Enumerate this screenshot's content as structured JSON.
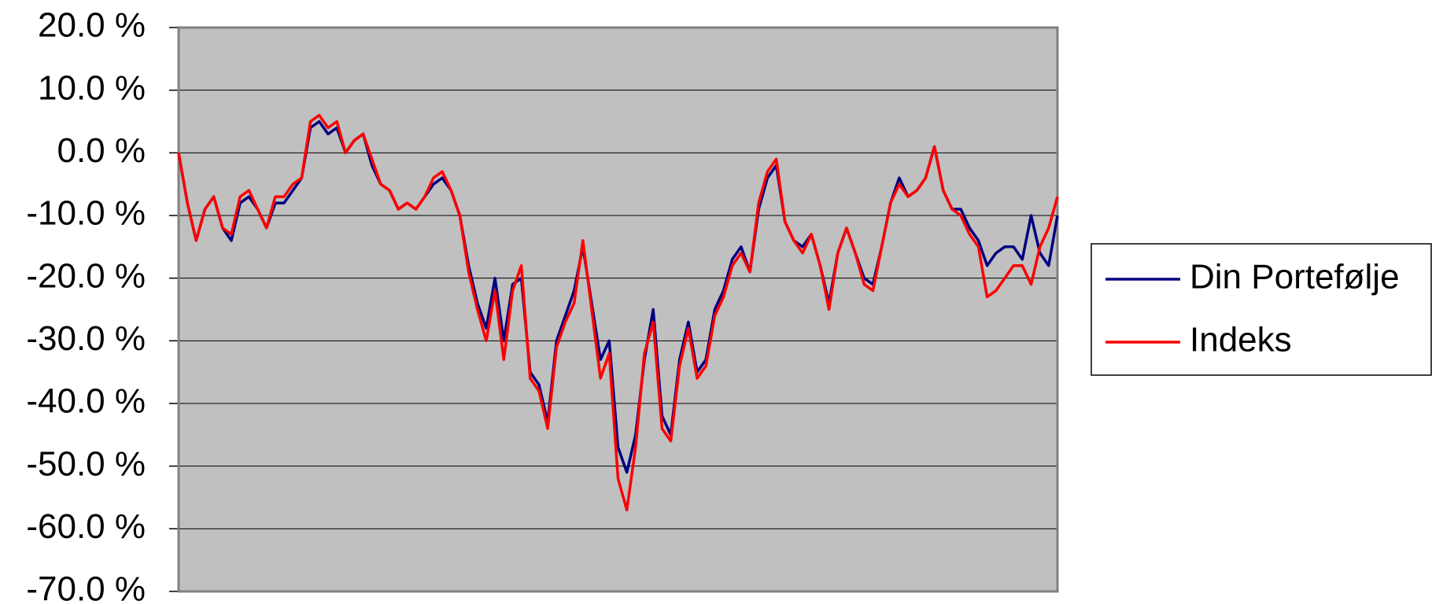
{
  "chart_data": {
    "type": "line",
    "ylim": [
      -70,
      20
    ],
    "yticks": [
      {
        "value": 20,
        "label": "20.0 %"
      },
      {
        "value": 10,
        "label": "10.0 %"
      },
      {
        "value": 0,
        "label": "0.0 %"
      },
      {
        "value": -10,
        "label": "-10.0 %"
      },
      {
        "value": -20,
        "label": "-20.0 %"
      },
      {
        "value": -30,
        "label": "-30.0 %"
      },
      {
        "value": -40,
        "label": "-40.0 %"
      },
      {
        "value": -50,
        "label": "-50.0 %"
      },
      {
        "value": -60,
        "label": "-60.0 %"
      },
      {
        "value": -70,
        "label": "-70.0 %"
      }
    ],
    "grid": true,
    "legend": "right",
    "series": [
      {
        "name": "Din Portefølje",
        "color": "#000080",
        "values": [
          0,
          -8,
          -14,
          -9,
          -7,
          -12,
          -14,
          -8,
          -7,
          -9,
          -12,
          -8,
          -8,
          -6,
          -4,
          4,
          5,
          3,
          4,
          0,
          2,
          3,
          -2,
          -5,
          -6,
          -9,
          -8,
          -9,
          -7,
          -5,
          -4,
          -6,
          -10,
          -18,
          -24,
          -28,
          -20,
          -30,
          -21,
          -20,
          -35,
          -37,
          -43,
          -30,
          -26,
          -22,
          -15,
          -24,
          -33,
          -30,
          -47,
          -51,
          -45,
          -33,
          -25,
          -42,
          -45,
          -33,
          -27,
          -35,
          -33,
          -25,
          -22,
          -17,
          -15,
          -19,
          -9,
          -4,
          -2,
          -11,
          -14,
          -15,
          -13,
          -18,
          -24,
          -16,
          -12,
          -16,
          -20,
          -21,
          -15,
          -8,
          -4,
          -7,
          -6,
          -4,
          1,
          -6,
          -9,
          -9,
          -12,
          -14,
          -18,
          -16,
          -15,
          -15,
          -17,
          -10,
          -16,
          -18,
          -10
        ]
      },
      {
        "name": "Indeks",
        "color": "#ff0000",
        "values": [
          0,
          -8,
          -14,
          -9,
          -7,
          -12,
          -13,
          -7,
          -6,
          -9,
          -12,
          -7,
          -7,
          -5,
          -4,
          5,
          6,
          4,
          5,
          0,
          2,
          3,
          -1,
          -5,
          -6,
          -9,
          -8,
          -9,
          -7,
          -4,
          -3,
          -6,
          -10,
          -19,
          -25,
          -30,
          -22,
          -33,
          -22,
          -18,
          -36,
          -38,
          -44,
          -31,
          -27,
          -24,
          -14,
          -25,
          -36,
          -32,
          -52,
          -57,
          -47,
          -32,
          -27,
          -44,
          -46,
          -34,
          -28,
          -36,
          -34,
          -26,
          -23,
          -18,
          -16,
          -19,
          -8,
          -3,
          -1,
          -11,
          -14,
          -16,
          -13,
          -18,
          -25,
          -16,
          -12,
          -16,
          -21,
          -22,
          -15,
          -8,
          -5,
          -7,
          -6,
          -4,
          1,
          -6,
          -9,
          -10,
          -13,
          -15,
          -23,
          -22,
          -20,
          -18,
          -18,
          -21,
          -15,
          -12,
          -7
        ]
      }
    ]
  }
}
